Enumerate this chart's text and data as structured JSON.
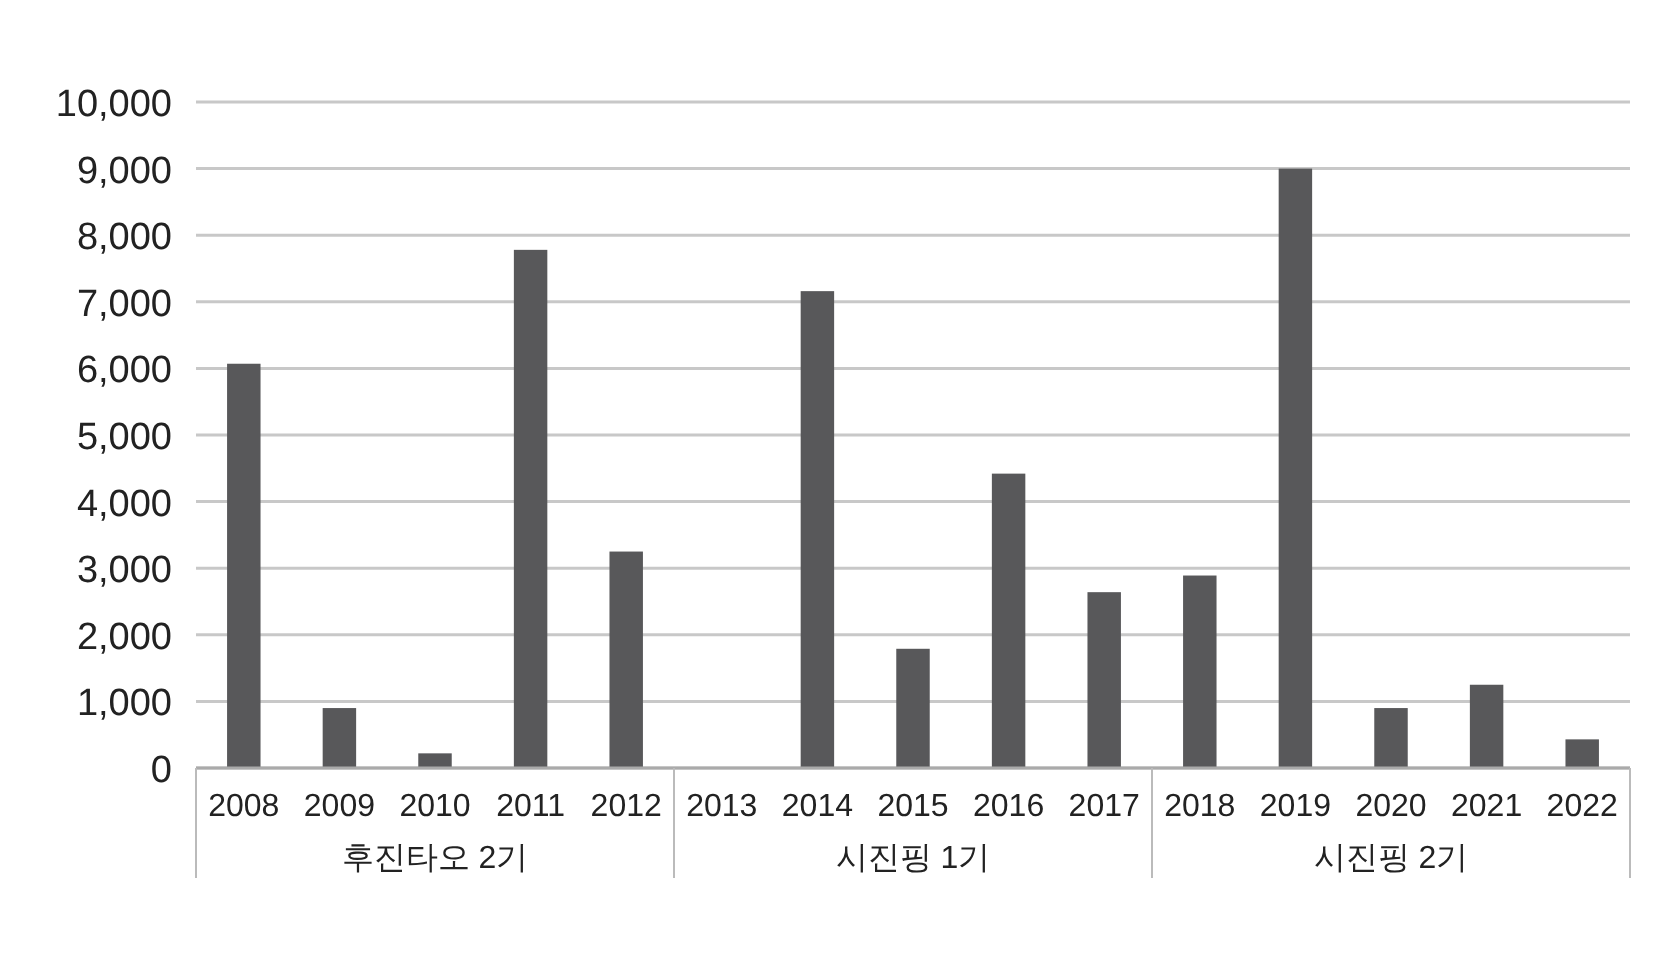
{
  "chart_data": {
    "type": "bar",
    "categories": [
      "2008",
      "2009",
      "2010",
      "2011",
      "2012",
      "2013",
      "2014",
      "2015",
      "2016",
      "2017",
      "2018",
      "2019",
      "2020",
      "2021",
      "2022"
    ],
    "values": [
      6070,
      900,
      220,
      7780,
      3250,
      0,
      7160,
      1790,
      4420,
      2640,
      2890,
      9000,
      900,
      1250,
      430
    ],
    "color": "#58585a",
    "ylim": [
      0,
      10000
    ],
    "yticks": [
      {
        "value": 0,
        "label": "0"
      },
      {
        "value": 1000,
        "label": "1,000"
      },
      {
        "value": 2000,
        "label": "2,000"
      },
      {
        "value": 3000,
        "label": "3,000"
      },
      {
        "value": 4000,
        "label": "4,000"
      },
      {
        "value": 5000,
        "label": "5,000"
      },
      {
        "value": 6000,
        "label": "6,000"
      },
      {
        "value": 7000,
        "label": "7,000"
      },
      {
        "value": 8000,
        "label": "8,000"
      },
      {
        "value": 9000,
        "label": "9,000"
      },
      {
        "value": 10000,
        "label": "10,000"
      }
    ],
    "grid": "y",
    "annotations": [
      "후진타오 2기",
      "시진핑 1기",
      "시진핑 2기"
    ]
  }
}
